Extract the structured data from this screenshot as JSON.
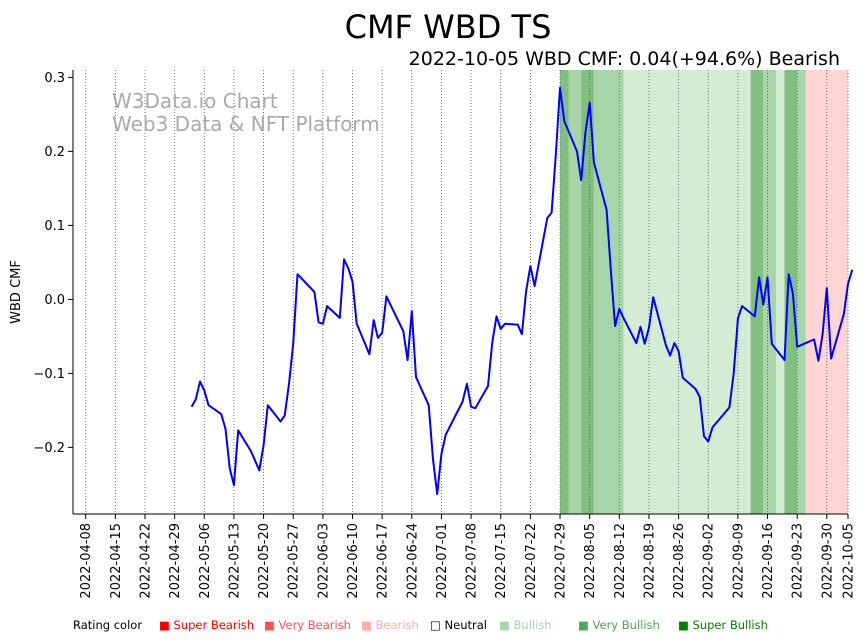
{
  "chart_data": {
    "type": "line",
    "title": "CMF WBD TS",
    "subtitle": "2022-10-05 WBD CMF: 0.04(+94.6%) Bearish",
    "ylabel": "WBD CMF",
    "xlabel": "",
    "xlim": [
      "2022-04-05",
      "2022-10-05"
    ],
    "ylim": [
      -0.29,
      0.31
    ],
    "yticks": [
      -0.2,
      -0.1,
      0.0,
      0.1,
      0.2,
      0.3
    ],
    "ytick_labels": [
      "−0.2",
      "−0.1",
      "0.0",
      "0.1",
      "0.2",
      "0.3"
    ],
    "xticks": [
      "2022-04-08",
      "2022-04-15",
      "2022-04-22",
      "2022-04-29",
      "2022-05-06",
      "2022-05-13",
      "2022-05-20",
      "2022-05-27",
      "2022-06-03",
      "2022-06-10",
      "2022-06-17",
      "2022-06-24",
      "2022-07-01",
      "2022-07-08",
      "2022-07-15",
      "2022-07-22",
      "2022-07-29",
      "2022-08-05",
      "2022-08-12",
      "2022-08-19",
      "2022-08-26",
      "2022-09-02",
      "2022-09-09",
      "2022-09-16",
      "2022-09-23",
      "2022-09-30",
      "2022-10-05"
    ],
    "grid": "vertical dotted",
    "series": [
      {
        "color": "#0000ff",
        "points": [
          [
            "2022-05-03",
            -0.145
          ],
          [
            "2022-05-04",
            -0.135
          ],
          [
            "2022-05-05",
            -0.111
          ],
          [
            "2022-05-06",
            -0.123
          ],
          [
            "2022-05-07",
            -0.143
          ],
          [
            "2022-05-10",
            -0.155
          ],
          [
            "2022-05-11",
            -0.175
          ],
          [
            "2022-05-12",
            -0.228
          ],
          [
            "2022-05-13",
            -0.251
          ],
          [
            "2022-05-14",
            -0.177
          ],
          [
            "2022-05-17",
            -0.205
          ],
          [
            "2022-05-19",
            -0.231
          ],
          [
            "2022-05-20",
            -0.197
          ],
          [
            "2022-05-21",
            -0.143
          ],
          [
            "2022-05-24",
            -0.165
          ],
          [
            "2022-05-25",
            -0.157
          ],
          [
            "2022-05-26",
            -0.114
          ],
          [
            "2022-05-27",
            -0.06
          ],
          [
            "2022-05-28",
            0.034
          ],
          [
            "2022-06-01",
            0.01
          ],
          [
            "2022-06-02",
            -0.031
          ],
          [
            "2022-06-03",
            -0.033
          ],
          [
            "2022-06-04",
            -0.009
          ],
          [
            "2022-06-07",
            -0.025
          ],
          [
            "2022-06-08",
            0.054
          ],
          [
            "2022-06-09",
            0.042
          ],
          [
            "2022-06-10",
            0.024
          ],
          [
            "2022-06-11",
            -0.033
          ],
          [
            "2022-06-14",
            -0.074
          ],
          [
            "2022-06-15",
            -0.028
          ],
          [
            "2022-06-16",
            -0.052
          ],
          [
            "2022-06-17",
            -0.045
          ],
          [
            "2022-06-18",
            0.004
          ],
          [
            "2022-06-22",
            -0.043
          ],
          [
            "2022-06-23",
            -0.082
          ],
          [
            "2022-06-24",
            -0.016
          ],
          [
            "2022-06-25",
            -0.105
          ],
          [
            "2022-06-28",
            -0.143
          ],
          [
            "2022-06-29",
            -0.216
          ],
          [
            "2022-06-30",
            -0.263
          ],
          [
            "2022-07-01",
            -0.209
          ],
          [
            "2022-07-02",
            -0.183
          ],
          [
            "2022-07-06",
            -0.138
          ],
          [
            "2022-07-07",
            -0.114
          ],
          [
            "2022-07-08",
            -0.145
          ],
          [
            "2022-07-09",
            -0.147
          ],
          [
            "2022-07-12",
            -0.117
          ],
          [
            "2022-07-13",
            -0.058
          ],
          [
            "2022-07-14",
            -0.023
          ],
          [
            "2022-07-15",
            -0.04
          ],
          [
            "2022-07-16",
            -0.033
          ],
          [
            "2022-07-19",
            -0.034
          ],
          [
            "2022-07-20",
            -0.047
          ],
          [
            "2022-07-21",
            0.011
          ],
          [
            "2022-07-22",
            0.045
          ],
          [
            "2022-07-23",
            0.018
          ],
          [
            "2022-07-26",
            0.11
          ],
          [
            "2022-07-27",
            0.117
          ],
          [
            "2022-07-28",
            0.195
          ],
          [
            "2022-07-29",
            0.286
          ],
          [
            "2022-07-30",
            0.241
          ],
          [
            "2022-08-02",
            0.2
          ],
          [
            "2022-08-03",
            0.161
          ],
          [
            "2022-08-04",
            0.225
          ],
          [
            "2022-08-05",
            0.266
          ],
          [
            "2022-08-06",
            0.185
          ],
          [
            "2022-08-09",
            0.121
          ],
          [
            "2022-08-10",
            0.04
          ],
          [
            "2022-08-11",
            -0.036
          ],
          [
            "2022-08-12",
            -0.013
          ],
          [
            "2022-08-13",
            -0.025
          ],
          [
            "2022-08-16",
            -0.059
          ],
          [
            "2022-08-17",
            -0.037
          ],
          [
            "2022-08-18",
            -0.06
          ],
          [
            "2022-08-19",
            -0.038
          ],
          [
            "2022-08-20",
            0.003
          ],
          [
            "2022-08-23",
            -0.062
          ],
          [
            "2022-08-24",
            -0.076
          ],
          [
            "2022-08-25",
            -0.059
          ],
          [
            "2022-08-26",
            -0.07
          ],
          [
            "2022-08-27",
            -0.106
          ],
          [
            "2022-08-30",
            -0.121
          ],
          [
            "2022-08-31",
            -0.132
          ],
          [
            "2022-09-01",
            -0.185
          ],
          [
            "2022-09-02",
            -0.192
          ],
          [
            "2022-09-03",
            -0.173
          ],
          [
            "2022-09-07",
            -0.146
          ],
          [
            "2022-09-08",
            -0.1
          ],
          [
            "2022-09-09",
            -0.026
          ],
          [
            "2022-09-10",
            -0.009
          ],
          [
            "2022-09-13",
            -0.023
          ],
          [
            "2022-09-14",
            0.03
          ],
          [
            "2022-09-15",
            -0.007
          ],
          [
            "2022-09-16",
            0.03
          ],
          [
            "2022-09-17",
            -0.06
          ],
          [
            "2022-09-20",
            -0.082
          ],
          [
            "2022-09-21",
            0.034
          ],
          [
            "2022-09-22",
            0.008
          ],
          [
            "2022-09-23",
            -0.064
          ],
          [
            "2022-09-27",
            -0.054
          ],
          [
            "2022-09-28",
            -0.083
          ],
          [
            "2022-09-29",
            -0.047
          ],
          [
            "2022-09-30",
            0.015
          ],
          [
            "2022-10-01",
            -0.08
          ],
          [
            "2022-10-04",
            -0.02
          ],
          [
            "2022-10-05",
            0.021
          ],
          [
            "2022-10-06",
            0.04
          ]
        ]
      }
    ],
    "rating_bands": [
      {
        "start": "2022-07-29",
        "end": "2022-07-31",
        "rating": "Super Bullish"
      },
      {
        "start": "2022-07-31",
        "end": "2022-08-03",
        "rating": "Very Bullish"
      },
      {
        "start": "2022-08-03",
        "end": "2022-08-06",
        "rating": "Super Bullish"
      },
      {
        "start": "2022-08-06",
        "end": "2022-08-13",
        "rating": "Very Bullish"
      },
      {
        "start": "2022-08-13",
        "end": "2022-09-12",
        "rating": "Bullish"
      },
      {
        "start": "2022-09-12",
        "end": "2022-09-15",
        "rating": "Super Bullish"
      },
      {
        "start": "2022-09-15",
        "end": "2022-09-18",
        "rating": "Very Bullish"
      },
      {
        "start": "2022-09-18",
        "end": "2022-09-20",
        "rating": "Bullish"
      },
      {
        "start": "2022-09-20",
        "end": "2022-09-23",
        "rating": "Super Bullish"
      },
      {
        "start": "2022-09-23",
        "end": "2022-09-25",
        "rating": "Very Bullish"
      },
      {
        "start": "2022-09-25",
        "end": "2022-10-06",
        "rating": "Bearish"
      }
    ],
    "band_colors": {
      "Super Bullish": "#7fbf7f",
      "Very Bullish": "#a8d5a8",
      "Bullish": "#d4ebd4",
      "Bearish": "#ffd5d5"
    },
    "watermark": [
      "W3Data.io Chart",
      "Web3 Data & NFT Platform"
    ],
    "legend": {
      "title": "Rating color",
      "items": [
        {
          "label": "Super Bearish",
          "color": "#ff0000",
          "marker": "■"
        },
        {
          "label": "Very Bearish",
          "color": "#ff5050",
          "marker": "■"
        },
        {
          "label": "Bearish",
          "color": "#ffaaaa",
          "marker": "■"
        },
        {
          "label": "Neutral",
          "color": "#000000",
          "marker": "□"
        },
        {
          "label": "Bullish",
          "color": "#aad4aa",
          "marker": "■"
        },
        {
          "label": "Very Bullish",
          "color": "#50a850",
          "marker": "■"
        },
        {
          "label": "Super Bullish",
          "color": "#008000",
          "marker": "■"
        }
      ]
    }
  }
}
